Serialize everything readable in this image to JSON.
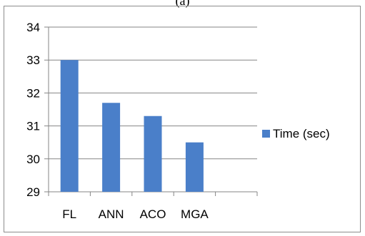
{
  "caption": "(a)",
  "chart_data": {
    "type": "bar",
    "categories": [
      "FL",
      "ANN",
      "ACO",
      "MGA",
      ""
    ],
    "series": [
      {
        "name": "Time (sec)",
        "values": [
          33.0,
          31.7,
          31.3,
          30.5,
          null
        ]
      }
    ],
    "yticks": [
      "29",
      "30",
      "31",
      "32",
      "33",
      "34"
    ],
    "ylim": [
      29,
      34
    ],
    "grid": true,
    "legend": "right",
    "colors": {
      "bar": "#4a7fc9",
      "grid": "#868686",
      "axis": "#868686"
    }
  }
}
